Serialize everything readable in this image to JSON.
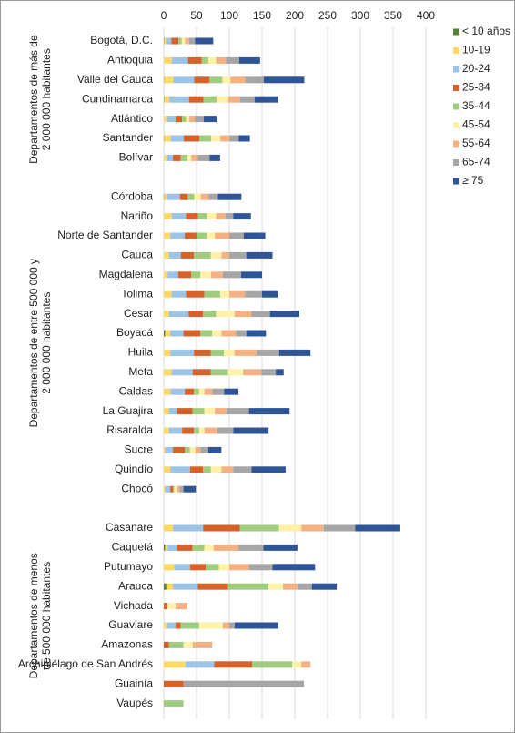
{
  "chart_data": {
    "type": "stacked-bar-horizontal",
    "xlim": [
      0,
      400
    ],
    "xticks": [
      0,
      50,
      100,
      150,
      200,
      250,
      300,
      350,
      400
    ],
    "grid": true,
    "legend": "right",
    "groups": [
      {
        "label": [
          "Departamentos de más de",
          "2 000 000 habitantes"
        ],
        "categories": [
          "Bogotá, D.C.",
          "Antioquia",
          "Valle del Cauca",
          "Cundinamarca",
          "Atlántico",
          "Santander",
          "Bolívar"
        ]
      },
      {
        "label": [
          "Departamentos de entre 500 000 y",
          "2 000 000 habitantes"
        ],
        "categories": [
          "Córdoba",
          "Nariño",
          "Norte de Santander",
          "Cauca",
          "Magdalena",
          "Tolima",
          "Cesar",
          "Boyacá",
          "Huila",
          "Meta",
          "Caldas",
          "La Guajira",
          "Risaralda",
          "Sucre",
          "Quindío",
          "Chocó"
        ]
      },
      {
        "label": [
          "Departamentos de menos",
          "de 500 000 habitantes"
        ],
        "categories": [
          "Casanare",
          "Caquetá",
          "Putumayo",
          "Arauca",
          "Vichada",
          "Guaviare",
          "Amazonas",
          "Archipiélago de San Andrés",
          "Guainía",
          "Vaupés"
        ]
      }
    ],
    "series": [
      {
        "name": "< 10 años",
        "color": "#548235",
        "values": [
          0.5,
          0,
          0.5,
          0.5,
          0,
          0.5,
          0,
          0.5,
          0,
          0,
          0,
          0,
          0,
          0,
          2,
          0,
          0,
          0,
          0,
          0,
          0,
          0,
          0,
          0,
          2,
          0,
          4,
          0,
          0,
          0,
          0,
          0,
          0
        ]
      },
      {
        "name": "10-19",
        "color": "#ffd966",
        "values": [
          3,
          12,
          14,
          8,
          4,
          10,
          4,
          4,
          12,
          10,
          8,
          6,
          12,
          8,
          8,
          10,
          12,
          10,
          8,
          8,
          2,
          10,
          2,
          14,
          4,
          16,
          10,
          0,
          4,
          0,
          33,
          0,
          0
        ]
      },
      {
        "name": "20-24",
        "color": "#9dc3e6",
        "values": [
          8,
          25,
          32,
          30,
          14,
          20,
          10,
          20,
          22,
          22,
          18,
          16,
          22,
          30,
          20,
          36,
          32,
          22,
          12,
          20,
          12,
          30,
          8,
          46,
          14,
          24,
          38,
          0,
          14,
          0,
          44,
          0,
          0
        ]
      },
      {
        "name": "25-34",
        "color": "#d5622a",
        "values": [
          11,
          21,
          23,
          22,
          10,
          24,
          12,
          12,
          18,
          18,
          20,
          20,
          28,
          22,
          26,
          26,
          28,
          14,
          24,
          18,
          18,
          20,
          4,
          56,
          24,
          24,
          46,
          6,
          8,
          8,
          58,
          30,
          0
        ]
      },
      {
        "name": "35-44",
        "color": "#9fcc7f",
        "values": [
          5,
          10,
          20,
          20,
          6,
          18,
          10,
          10,
          14,
          16,
          26,
          14,
          24,
          20,
          18,
          20,
          26,
          8,
          18,
          8,
          8,
          12,
          2,
          60,
          18,
          20,
          62,
          0,
          28,
          22,
          61,
          0,
          30
        ]
      },
      {
        "name": "45-54",
        "color": "#fff2a8",
        "values": [
          5,
          12,
          12,
          18,
          5,
          14,
          6,
          10,
          14,
          12,
          16,
          16,
          14,
          28,
          14,
          16,
          23,
          8,
          16,
          8,
          8,
          16,
          4,
          34,
          14,
          16,
          22,
          12,
          36,
          14,
          14,
          0,
          0
        ]
      },
      {
        "name": "55-64",
        "color": "#f4b183",
        "values": [
          6,
          15,
          23,
          18,
          8,
          14,
          10,
          12,
          14,
          22,
          12,
          18,
          24,
          26,
          22,
          34,
          28,
          12,
          18,
          20,
          8,
          18,
          4,
          34,
          38,
          30,
          22,
          18,
          10,
          30,
          14,
          0,
          0
        ]
      },
      {
        "name": "65-74",
        "color": "#a6a6a6",
        "values": [
          9,
          20,
          28,
          22,
          14,
          14,
          18,
          14,
          12,
          22,
          26,
          28,
          26,
          28,
          16,
          34,
          22,
          18,
          34,
          24,
          12,
          28,
          6,
          48,
          38,
          36,
          22,
          0,
          8,
          0,
          0,
          184,
          0
        ]
      },
      {
        "name": "≥ 75",
        "color": "#2f5597",
        "values": [
          28,
          32,
          62,
          36,
          20,
          17,
          16,
          36,
          27,
          33,
          40,
          32,
          24,
          45,
          30,
          48,
          12,
          22,
          62,
          54,
          20,
          52,
          19,
          69,
          52,
          65,
          38,
          0,
          67,
          0,
          0,
          0,
          0
        ]
      }
    ]
  }
}
